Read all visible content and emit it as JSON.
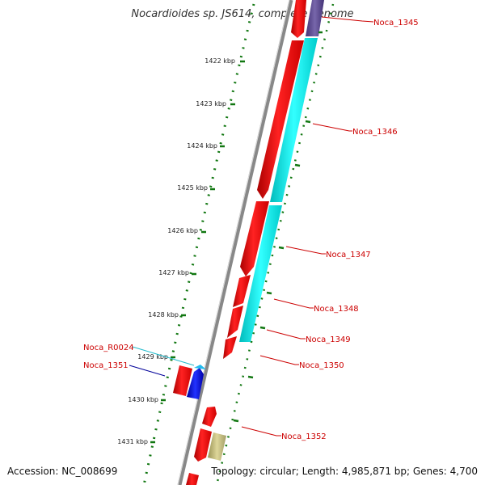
{
  "title": "Nocardioides sp. JS614, complete genome",
  "footer": {
    "accession": "Accession: NC_008699",
    "summary": "Topology: circular; Length: 4,985,871 bp; Genes: 4,700"
  },
  "colors": {
    "cds": "#ee0000",
    "cds_cyan": "#00eeee",
    "blue": "#0000dd",
    "purple": "#554488",
    "olive": "#bbb377",
    "backbone": "#888888",
    "ruler": "#117711",
    "label_red": "#cc0000",
    "label_cyan": "#22bbcc",
    "label_blue": "#000099"
  },
  "kbp_ticks": [
    "1422 kbp",
    "1423 kbp",
    "1424 kbp",
    "1425 kbp",
    "1426 kbp",
    "1427 kbp",
    "1428 kbp",
    "1429 kbp",
    "1430 kbp",
    "1431 kbp"
  ],
  "gene_labels": [
    {
      "id": "noca-1345",
      "text": "Noca_1345",
      "color": "label_red"
    },
    {
      "id": "noca-1346",
      "text": "Noca_1346",
      "color": "label_red"
    },
    {
      "id": "noca-1347",
      "text": "Noca_1347",
      "color": "label_red"
    },
    {
      "id": "noca-1348",
      "text": "Noca_1348",
      "color": "label_red"
    },
    {
      "id": "noca-1349",
      "text": "Noca_1349",
      "color": "label_red"
    },
    {
      "id": "noca-1350",
      "text": "Noca_1350",
      "color": "label_red"
    },
    {
      "id": "noca-r0024",
      "text": "Noca_R0024",
      "color": "label_cyan"
    },
    {
      "id": "noca-1351",
      "text": "Noca_1351",
      "color": "label_blue"
    },
    {
      "id": "noca-1352",
      "text": "Noca_1352",
      "color": "label_red"
    }
  ]
}
